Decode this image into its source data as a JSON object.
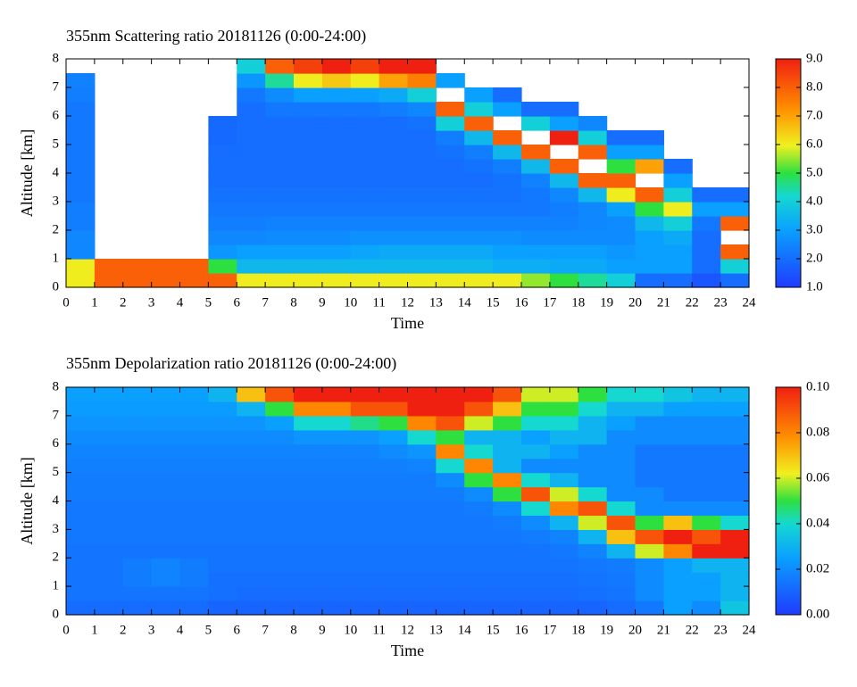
{
  "chart_data": [
    {
      "type": "heatmap",
      "title": "355nm Scattering ratio  20181126 (0:00-24:00)",
      "xlabel": "Time",
      "ylabel": "Altitude [km]",
      "xlim": [
        0,
        24
      ],
      "ylim": [
        0,
        8
      ],
      "xticks": [
        0,
        1,
        2,
        3,
        4,
        5,
        6,
        7,
        8,
        9,
        10,
        11,
        12,
        13,
        14,
        15,
        16,
        17,
        18,
        19,
        20,
        21,
        22,
        23,
        24
      ],
      "yticks": [
        0,
        1,
        2,
        3,
        4,
        5,
        6,
        7,
        8
      ],
      "zlim": [
        1,
        9
      ],
      "zticks": [
        {
          "value": 1,
          "label": "1.0"
        },
        {
          "value": 2,
          "label": "2.0"
        },
        {
          "value": 3,
          "label": "3.0"
        },
        {
          "value": 4,
          "label": "4.0"
        },
        {
          "value": 5,
          "label": "5.0"
        },
        {
          "value": 6,
          "label": "6.0"
        },
        {
          "value": 7,
          "label": "7.0"
        },
        {
          "value": 8,
          "label": "8.0"
        },
        {
          "value": 9,
          "label": "9.0"
        }
      ],
      "z": [
        [
          6,
          6,
          2.5,
          2.5,
          2.3,
          2.3,
          2.2,
          2.2,
          2.2,
          2.2,
          2.2,
          2.2,
          2.2,
          2.3,
          2.4,
          null
        ],
        [
          8,
          8,
          null,
          null,
          null,
          null,
          null,
          null,
          null,
          null,
          null,
          null,
          null,
          null,
          null,
          null
        ],
        [
          8,
          8,
          null,
          null,
          null,
          null,
          null,
          null,
          null,
          null,
          null,
          null,
          null,
          null,
          null,
          null
        ],
        [
          8,
          8,
          null,
          null,
          null,
          null,
          null,
          null,
          null,
          null,
          null,
          null,
          null,
          null,
          null,
          null
        ],
        [
          8,
          8,
          null,
          null,
          null,
          null,
          null,
          null,
          null,
          null,
          null,
          null,
          null,
          null,
          null,
          null
        ],
        [
          8,
          5,
          2.8,
          2.5,
          2.3,
          2.2,
          2.1,
          2,
          2,
          2,
          1.9,
          1.9,
          null,
          null,
          null,
          null
        ],
        [
          6,
          3.5,
          3,
          2.5,
          2.3,
          2.2,
          2.1,
          2,
          2,
          2,
          2,
          2,
          2,
          2.2,
          2.8,
          4
        ],
        [
          6,
          3.5,
          3,
          2.6,
          2.4,
          2.2,
          2.1,
          2,
          2,
          2,
          2,
          2,
          2.2,
          2.6,
          4.5,
          8
        ],
        [
          6,
          3.5,
          3,
          2.6,
          2.4,
          2.2,
          2.1,
          2,
          2,
          2,
          2,
          2,
          2.2,
          3,
          6,
          8.5
        ],
        [
          6,
          3.5,
          3,
          2.6,
          2.4,
          2.2,
          2.1,
          2,
          2,
          2,
          2,
          2,
          2.2,
          3,
          6.5,
          9
        ],
        [
          6,
          3.5,
          3.1,
          2.7,
          2.4,
          2.2,
          2.1,
          2,
          2,
          2,
          2,
          2,
          2.2,
          3,
          6,
          8.5
        ],
        [
          6,
          3.5,
          3.2,
          2.7,
          2.4,
          2.2,
          2.1,
          2,
          2,
          2,
          2,
          2,
          2.3,
          3.2,
          7,
          9
        ],
        [
          6,
          3.5,
          3.2,
          2.7,
          2.4,
          2.2,
          2.1,
          2,
          2,
          2,
          2,
          2.1,
          2.5,
          4,
          7.5,
          9
        ],
        [
          6,
          3.5,
          3.2,
          2.7,
          2.4,
          2.2,
          2.1,
          2,
          2,
          2.1,
          2.3,
          4,
          8,
          null,
          3,
          null
        ],
        [
          6,
          3.5,
          3.2,
          2.7,
          2.4,
          2.2,
          2.1,
          2,
          2.1,
          2.3,
          3.5,
          8,
          4,
          3,
          null,
          null
        ],
        [
          6,
          3.3,
          3,
          2.7,
          2.4,
          2.2,
          2.1,
          2.1,
          2.3,
          3.5,
          8,
          null,
          3,
          2,
          null,
          null
        ],
        [
          5.5,
          3.3,
          3,
          2.6,
          2.4,
          2.2,
          2.2,
          2.4,
          3.5,
          8,
          null,
          4,
          2,
          null,
          null,
          null
        ],
        [
          5,
          3.2,
          3,
          2.6,
          2.4,
          2.3,
          2.5,
          3.5,
          8,
          null,
          9,
          3,
          2,
          null,
          null,
          null
        ],
        [
          4.5,
          3.2,
          3,
          2.6,
          2.5,
          2.5,
          3.5,
          8,
          null,
          8,
          4,
          2.5,
          null,
          null,
          null,
          null
        ],
        [
          4,
          3,
          2.8,
          2.6,
          2.6,
          3,
          6,
          8,
          5,
          3,
          2,
          null,
          null,
          null,
          null,
          null
        ],
        [
          2,
          3,
          3,
          3,
          3.5,
          5,
          8,
          null,
          7,
          3,
          2,
          null,
          null,
          null,
          null,
          null
        ],
        [
          2,
          3,
          3,
          3.2,
          4,
          6,
          4,
          3,
          2,
          null,
          null,
          null,
          null,
          null,
          null,
          null
        ],
        [
          1.5,
          2,
          2,
          2,
          2.2,
          3,
          2,
          null,
          null,
          null,
          null,
          null,
          null,
          null,
          null,
          null
        ],
        [
          2,
          4,
          8,
          null,
          8,
          3,
          2,
          null,
          null,
          null,
          null,
          null,
          null,
          null,
          null,
          null
        ]
      ]
    },
    {
      "type": "heatmap",
      "title": "355nm Depolarization ratio  20181126 (0:00-24:00)",
      "xlabel": "Time",
      "ylabel": "Altitude [km]",
      "xlim": [
        0,
        24
      ],
      "ylim": [
        0,
        8
      ],
      "xticks": [
        0,
        1,
        2,
        3,
        4,
        5,
        6,
        7,
        8,
        9,
        10,
        11,
        12,
        13,
        14,
        15,
        16,
        17,
        18,
        19,
        20,
        21,
        22,
        23,
        24
      ],
      "yticks": [
        0,
        1,
        2,
        3,
        4,
        5,
        6,
        7,
        8
      ],
      "zlim": [
        0,
        0.1
      ],
      "zticks": [
        {
          "value": 0,
          "label": "0.00"
        },
        {
          "value": 0.02,
          "label": "0.02"
        },
        {
          "value": 0.04,
          "label": "0.04"
        },
        {
          "value": 0.06,
          "label": "0.06"
        },
        {
          "value": 0.08,
          "label": "0.08"
        },
        {
          "value": 0.1,
          "label": "0.10"
        }
      ],
      "z": [
        [
          0.012,
          0.014,
          0.014,
          0.014,
          0.014,
          0.015,
          0.015,
          0.015,
          0.016,
          0.016,
          0.017,
          0.018,
          0.02,
          0.022,
          0.024,
          0.025
        ],
        [
          0.012,
          0.014,
          0.014,
          0.014,
          0.014,
          0.015,
          0.015,
          0.015,
          0.016,
          0.016,
          0.017,
          0.018,
          0.02,
          0.022,
          0.024,
          0.025
        ],
        [
          0.012,
          0.014,
          0.016,
          0.016,
          0.014,
          0.015,
          0.015,
          0.015,
          0.016,
          0.016,
          0.017,
          0.018,
          0.02,
          0.022,
          0.024,
          0.025
        ],
        [
          0.012,
          0.014,
          0.018,
          0.018,
          0.014,
          0.015,
          0.015,
          0.015,
          0.016,
          0.016,
          0.017,
          0.018,
          0.02,
          0.022,
          0.024,
          0.025
        ],
        [
          0.012,
          0.014,
          0.016,
          0.016,
          0.014,
          0.015,
          0.015,
          0.015,
          0.016,
          0.016,
          0.017,
          0.018,
          0.02,
          0.022,
          0.024,
          0.025
        ],
        [
          0.01,
          0.013,
          0.013,
          0.014,
          0.014,
          0.015,
          0.015,
          0.015,
          0.016,
          0.016,
          0.017,
          0.018,
          0.02,
          0.022,
          0.024,
          0.03
        ],
        [
          0.01,
          0.012,
          0.013,
          0.014,
          0.014,
          0.015,
          0.015,
          0.015,
          0.016,
          0.016,
          0.017,
          0.018,
          0.02,
          0.022,
          0.03,
          0.07
        ],
        [
          0.01,
          0.012,
          0.013,
          0.014,
          0.014,
          0.015,
          0.015,
          0.015,
          0.016,
          0.016,
          0.017,
          0.018,
          0.02,
          0.025,
          0.05,
          0.09
        ],
        [
          0.01,
          0.012,
          0.013,
          0.014,
          0.014,
          0.015,
          0.015,
          0.015,
          0.016,
          0.016,
          0.017,
          0.018,
          0.022,
          0.04,
          0.08,
          0.1
        ],
        [
          0.01,
          0.012,
          0.013,
          0.014,
          0.014,
          0.015,
          0.015,
          0.015,
          0.016,
          0.016,
          0.017,
          0.018,
          0.022,
          0.04,
          0.08,
          0.1
        ],
        [
          0.01,
          0.012,
          0.013,
          0.014,
          0.014,
          0.015,
          0.015,
          0.015,
          0.016,
          0.016,
          0.017,
          0.018,
          0.022,
          0.045,
          0.09,
          0.1
        ],
        [
          0.01,
          0.012,
          0.013,
          0.014,
          0.014,
          0.015,
          0.015,
          0.015,
          0.016,
          0.016,
          0.017,
          0.02,
          0.025,
          0.05,
          0.09,
          0.1
        ],
        [
          0.01,
          0.012,
          0.013,
          0.014,
          0.014,
          0.015,
          0.015,
          0.015,
          0.016,
          0.016,
          0.018,
          0.022,
          0.04,
          0.08,
          0.1,
          0.1
        ],
        [
          0.01,
          0.012,
          0.013,
          0.014,
          0.014,
          0.015,
          0.015,
          0.015,
          0.016,
          0.02,
          0.04,
          0.08,
          0.05,
          0.09,
          0.1,
          0.1
        ],
        [
          0.01,
          0.012,
          0.013,
          0.014,
          0.014,
          0.015,
          0.015,
          0.016,
          0.02,
          0.05,
          0.08,
          0.04,
          0.03,
          0.06,
          0.09,
          0.1
        ],
        [
          0.01,
          0.012,
          0.013,
          0.014,
          0.014,
          0.015,
          0.016,
          0.02,
          0.05,
          0.08,
          0.03,
          0.03,
          0.03,
          0.05,
          0.07,
          0.09
        ],
        [
          0.01,
          0.012,
          0.013,
          0.014,
          0.014,
          0.016,
          0.02,
          0.04,
          0.09,
          0.04,
          0.02,
          0.03,
          0.025,
          0.04,
          0.05,
          0.06
        ],
        [
          0.01,
          0.012,
          0.013,
          0.014,
          0.015,
          0.018,
          0.03,
          0.08,
          0.06,
          0.03,
          0.02,
          0.025,
          0.03,
          0.04,
          0.05,
          0.06
        ],
        [
          0.01,
          0.013,
          0.014,
          0.015,
          0.018,
          0.03,
          0.06,
          0.09,
          0.04,
          0.02,
          0.02,
          0.02,
          0.03,
          0.03,
          0.04,
          0.05
        ],
        [
          0.012,
          0.014,
          0.015,
          0.016,
          0.03,
          0.07,
          0.09,
          0.04,
          0.02,
          0.02,
          0.02,
          0.02,
          0.02,
          0.025,
          0.03,
          0.04
        ],
        [
          0.015,
          0.02,
          0.02,
          0.02,
          0.06,
          0.09,
          0.05,
          0.02,
          0.02,
          0.015,
          0.015,
          0.015,
          0.02,
          0.02,
          0.03,
          0.04
        ],
        [
          0.025,
          0.025,
          0.025,
          0.025,
          0.08,
          0.1,
          0.07,
          0.02,
          0.015,
          0.015,
          0.015,
          0.015,
          0.02,
          0.02,
          0.025,
          0.035
        ],
        [
          0.02,
          0.025,
          0.025,
          0.03,
          0.1,
          0.09,
          0.05,
          0.02,
          0.015,
          0.015,
          0.015,
          0.015,
          0.02,
          0.02,
          0.025,
          0.03
        ],
        [
          0.035,
          0.03,
          0.03,
          0.03,
          0.1,
          0.1,
          0.04,
          0.02,
          0.015,
          0.015,
          0.015,
          0.015,
          0.02,
          0.02,
          0.025,
          0.03
        ]
      ]
    }
  ]
}
